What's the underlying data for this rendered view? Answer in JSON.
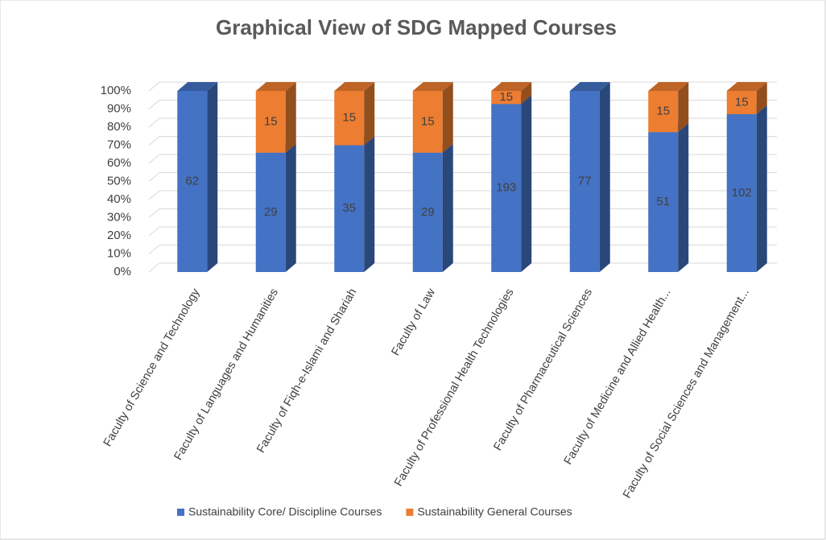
{
  "chart_data": {
    "type": "bar",
    "stacking": "percent",
    "title": "Graphical View of SDG Mapped Courses",
    "categories": [
      "Faculty of Science and Technology",
      "Faculty of Languages and Humanities",
      "Faculty of Fiqh-e-Islami and Shariah",
      "Faculty of Law",
      "Faculty of Professional Health Technologies",
      "Faculty of Pharmaceutical Sciences",
      "Faculty of Medicine and Allied Health...",
      "Faculty of Social Sciences and Management..."
    ],
    "series": [
      {
        "name": "Sustainability Core/ Discipline Courses",
        "color": "#4472c4",
        "values": [
          62,
          29,
          35,
          29,
          193,
          77,
          51,
          102
        ]
      },
      {
        "name": "Sustainability General Courses",
        "color": "#ed7d31",
        "values": [
          null,
          15,
          15,
          15,
          15,
          null,
          15,
          15
        ]
      }
    ],
    "ylim": [
      0,
      100
    ],
    "yticks": [
      {
        "value": 0,
        "label": "0%"
      },
      {
        "value": 10,
        "label": "10%"
      },
      {
        "value": 20,
        "label": "20%"
      },
      {
        "value": 30,
        "label": "30%"
      },
      {
        "value": 40,
        "label": "40%"
      },
      {
        "value": 50,
        "label": "50%"
      },
      {
        "value": 60,
        "label": "60%"
      },
      {
        "value": 70,
        "label": "70%"
      },
      {
        "value": 80,
        "label": "80%"
      },
      {
        "value": 90,
        "label": "90%"
      },
      {
        "value": 100,
        "label": "100%"
      }
    ],
    "grid": true,
    "legend": "bottom"
  }
}
